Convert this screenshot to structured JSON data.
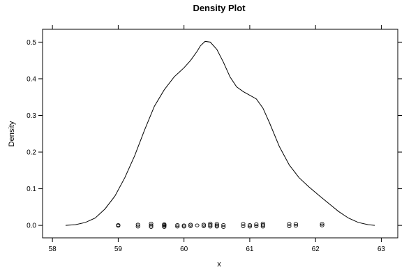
{
  "chart_data": {
    "type": "line",
    "title": "Density Plot",
    "xlabel": "x",
    "ylabel": "Density",
    "xlim": [
      57.85,
      63.25
    ],
    "ylim": [
      -0.034,
      0.535
    ],
    "x_ticks": [
      "58",
      "59",
      "60",
      "61",
      "62",
      "63"
    ],
    "y_ticks": [
      "0.0",
      "0.1",
      "0.2",
      "0.3",
      "0.4",
      "0.5"
    ],
    "grid": false,
    "legend": "none",
    "density_curve": [
      [
        58.2,
        0.0
      ],
      [
        58.35,
        0.002
      ],
      [
        58.5,
        0.008
      ],
      [
        58.65,
        0.02
      ],
      [
        58.8,
        0.045
      ],
      [
        58.95,
        0.08
      ],
      [
        59.1,
        0.13
      ],
      [
        59.25,
        0.19
      ],
      [
        59.4,
        0.26
      ],
      [
        59.55,
        0.325
      ],
      [
        59.7,
        0.37
      ],
      [
        59.85,
        0.405
      ],
      [
        60.0,
        0.43
      ],
      [
        60.1,
        0.45
      ],
      [
        60.2,
        0.475
      ],
      [
        60.25,
        0.49
      ],
      [
        60.32,
        0.502
      ],
      [
        60.4,
        0.5
      ],
      [
        60.5,
        0.48
      ],
      [
        60.6,
        0.445
      ],
      [
        60.7,
        0.405
      ],
      [
        60.8,
        0.378
      ],
      [
        60.9,
        0.365
      ],
      [
        61.0,
        0.355
      ],
      [
        61.1,
        0.345
      ],
      [
        61.2,
        0.32
      ],
      [
        61.3,
        0.28
      ],
      [
        61.45,
        0.215
      ],
      [
        61.6,
        0.165
      ],
      [
        61.75,
        0.13
      ],
      [
        61.9,
        0.105
      ],
      [
        62.05,
        0.082
      ],
      [
        62.2,
        0.06
      ],
      [
        62.35,
        0.038
      ],
      [
        62.5,
        0.02
      ],
      [
        62.65,
        0.008
      ],
      [
        62.8,
        0.002
      ],
      [
        62.9,
        0.0
      ]
    ],
    "rug_points": [
      [
        59.0,
        0.001
      ],
      [
        59.0,
        -0.001
      ],
      [
        59.3,
        0.002
      ],
      [
        59.3,
        -0.003
      ],
      [
        59.5,
        0.005
      ],
      [
        59.5,
        0.0
      ],
      [
        59.5,
        -0.004
      ],
      [
        59.7,
        0.003
      ],
      [
        59.7,
        -0.001
      ],
      [
        59.7,
        0.001
      ],
      [
        59.7,
        -0.004
      ],
      [
        59.9,
        0.001
      ],
      [
        59.9,
        -0.003
      ],
      [
        60.0,
        -0.003
      ],
      [
        60.0,
        0.0
      ],
      [
        60.1,
        0.002
      ],
      [
        60.1,
        -0.002
      ],
      [
        60.2,
        0.0
      ],
      [
        60.3,
        0.002
      ],
      [
        60.3,
        -0.002
      ],
      [
        60.4,
        0.005
      ],
      [
        60.4,
        0.001
      ],
      [
        60.4,
        -0.003
      ],
      [
        60.5,
        0.004
      ],
      [
        60.5,
        0.0
      ],
      [
        60.5,
        -0.003
      ],
      [
        60.6,
        0.001
      ],
      [
        60.6,
        -0.004
      ],
      [
        60.9,
        0.004
      ],
      [
        60.9,
        -0.002
      ],
      [
        61.0,
        0.001
      ],
      [
        61.0,
        -0.003
      ],
      [
        61.1,
        0.003
      ],
      [
        61.1,
        -0.002
      ],
      [
        61.2,
        0.005
      ],
      [
        61.2,
        0.001
      ],
      [
        61.2,
        -0.003
      ],
      [
        61.6,
        0.004
      ],
      [
        61.6,
        -0.002
      ],
      [
        61.7,
        0.004
      ],
      [
        61.7,
        -0.001
      ],
      [
        62.1,
        0.004
      ],
      [
        62.1,
        0.0
      ]
    ]
  }
}
